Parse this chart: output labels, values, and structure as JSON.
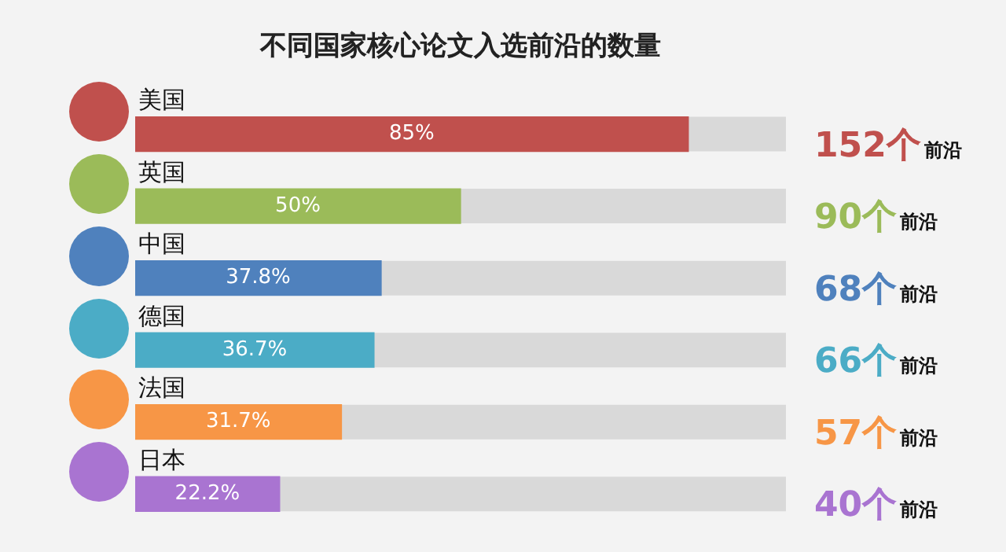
{
  "chart_data": {
    "type": "bar",
    "orientation": "horizontal",
    "title": "不同国家核心论文入选前沿的数量",
    "categories": [
      "美国",
      "英国",
      "中国",
      "德国",
      "法国",
      "日本"
    ],
    "values": [
      85,
      50,
      37.8,
      36.7,
      31.7,
      22.2
    ],
    "colors": [
      "#c0504d",
      "#9bbb59",
      "#4f81bd",
      "#4bacc6",
      "#f79646",
      "#a974d1"
    ],
    "value_labels": [
      "85%",
      "50%",
      "37.8%",
      "36.7%",
      "31.7%",
      "22.2%"
    ],
    "xlim": [
      0,
      100
    ],
    "annotations": [
      "152个前沿",
      "90个前沿",
      "68个前沿",
      "66个前沿",
      "57个前沿",
      "40个前沿"
    ]
  }
}
